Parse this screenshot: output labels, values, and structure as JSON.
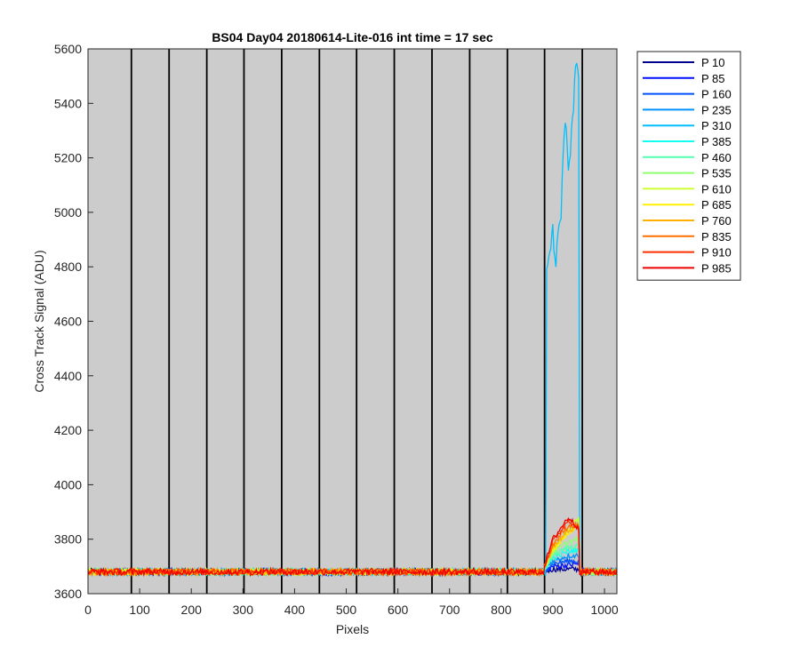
{
  "chart_data": {
    "type": "line",
    "title": "BS04 Day04 20180614-Lite-016 int time = 17 sec",
    "xlabel": "Pixels",
    "ylabel": "Cross Track Signal (ADU)",
    "xlim": [
      0,
      1024
    ],
    "ylim": [
      3600,
      5600
    ],
    "xticks": [
      0,
      100,
      200,
      300,
      400,
      500,
      600,
      700,
      800,
      900,
      1000
    ],
    "yticks": [
      3600,
      3800,
      4000,
      4200,
      4400,
      4600,
      4800,
      5000,
      5200,
      5400,
      5600
    ],
    "grid": false,
    "legend_position": "outside-right-top",
    "background_color": "#cccccc",
    "vertical_markers_x": [
      84,
      157,
      230,
      302,
      375,
      448,
      520,
      593,
      666,
      739,
      812,
      884,
      957
    ],
    "baseline_level": 3680,
    "series": [
      {
        "name": "P 10",
        "color": "#00008f",
        "region_levels": {
          "880": 3680,
          "900": 3690,
          "930": 3690,
          "950": 3690
        }
      },
      {
        "name": "P 85",
        "color": "#0010ff",
        "region_levels": {
          "880": 3680,
          "900": 3700,
          "930": 3705,
          "950": 3710
        }
      },
      {
        "name": "P 160",
        "color": "#0050ff",
        "region_levels": {
          "880": 3680,
          "900": 3710,
          "930": 3720,
          "950": 3720
        }
      },
      {
        "name": "P 235",
        "color": "#0090ff",
        "region_levels": {
          "880": 3680,
          "900": 3720,
          "930": 3740,
          "950": 3740
        }
      },
      {
        "name": "P 310",
        "color": "#00bfff",
        "spike_profile": [
          [
            886,
            3680
          ],
          [
            888,
            4800
          ],
          [
            895,
            4880
          ],
          [
            900,
            4930
          ],
          [
            905,
            4800
          ],
          [
            910,
            4920
          ],
          [
            915,
            4950
          ],
          [
            920,
            5200
          ],
          [
            925,
            5350
          ],
          [
            930,
            5150
          ],
          [
            935,
            5250
          ],
          [
            940,
            5400
          ],
          [
            945,
            5570
          ],
          [
            950,
            5500
          ],
          [
            952,
            3680
          ]
        ]
      },
      {
        "name": "P 385",
        "color": "#10ffef",
        "region_levels": {
          "880": 3680,
          "900": 3730,
          "930": 3755,
          "950": 3760
        }
      },
      {
        "name": "P 460",
        "color": "#50ffaf",
        "region_levels": {
          "880": 3680,
          "900": 3740,
          "930": 3770,
          "950": 3780
        }
      },
      {
        "name": "P 535",
        "color": "#90ff70",
        "region_levels": {
          "880": 3680,
          "900": 3750,
          "930": 3790,
          "950": 3800
        }
      },
      {
        "name": "P 610",
        "color": "#cfff30",
        "region_levels": {
          "880": 3680,
          "900": 3760,
          "930": 3830,
          "950": 3880
        }
      },
      {
        "name": "P 685",
        "color": "#ffef00",
        "region_levels": {
          "880": 3680,
          "900": 3760,
          "930": 3820,
          "950": 3860
        }
      },
      {
        "name": "P 760",
        "color": "#ffaf00",
        "region_levels": {
          "880": 3680,
          "900": 3770,
          "930": 3830,
          "950": 3850
        }
      },
      {
        "name": "P 835",
        "color": "#ff7000",
        "region_levels": {
          "880": 3680,
          "900": 3780,
          "930": 3850,
          "950": 3850
        }
      },
      {
        "name": "P 910",
        "color": "#ff3000",
        "region_levels": {
          "880": 3680,
          "900": 3790,
          "930": 3870,
          "950": 3840
        }
      },
      {
        "name": "P 985",
        "color": "#ef0000",
        "region_levels": {
          "880": 3680,
          "900": 3800,
          "930": 3880,
          "950": 3840
        }
      }
    ]
  }
}
